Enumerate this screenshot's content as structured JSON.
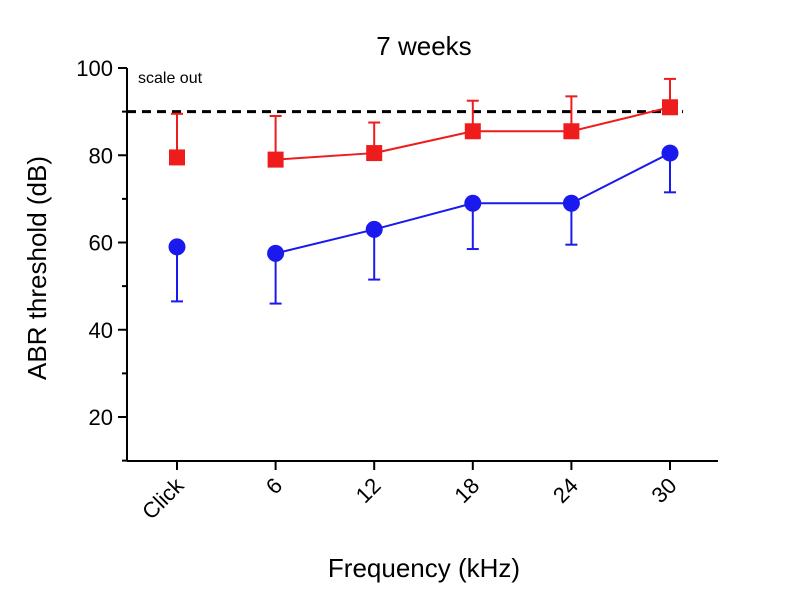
{
  "chart_data": {
    "type": "line",
    "title": "7 weeks",
    "xlabel": "Frequency (kHz)",
    "ylabel": "ABR threshold (dB)",
    "categories": [
      "Click",
      "6",
      "12",
      "18",
      "24",
      "30"
    ],
    "ylim": [
      10,
      100
    ],
    "yticks": [
      20,
      40,
      60,
      80,
      100
    ],
    "grid": false,
    "legend": "none",
    "reference_line": {
      "y": 90,
      "style": "dashed",
      "color": "#000000",
      "label": "scale out"
    },
    "series": [
      {
        "marker": "square",
        "color": "#ee1c1c",
        "values": [
          79.5,
          79,
          80.5,
          85.5,
          85.5,
          91
        ],
        "error_up": [
          10,
          10,
          7,
          7,
          8,
          6.5
        ],
        "connect_from_index": 1
      },
      {
        "marker": "circle",
        "color": "#1a1aee",
        "values": [
          59,
          57.5,
          63,
          69,
          69,
          80.5
        ],
        "error_down": [
          12.5,
          11.5,
          11.5,
          10.5,
          9.5,
          9
        ],
        "connect_from_index": 1
      }
    ]
  }
}
